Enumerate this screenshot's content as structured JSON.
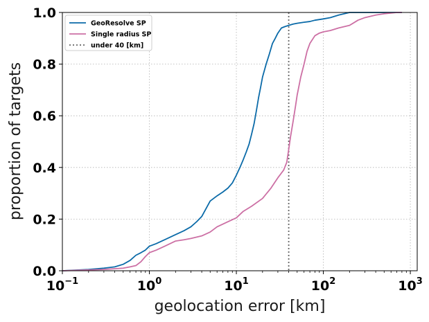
{
  "chart_data": {
    "type": "line",
    "title": "",
    "xlabel": "geolocation error [km]",
    "ylabel": "proportion of targets",
    "xscale": "log",
    "xlim": [
      0.1,
      1200
    ],
    "ylim": [
      0,
      1
    ],
    "x_ticks": [
      {
        "value": 0.1,
        "base": "10",
        "exp": "−1"
      },
      {
        "value": 1,
        "base": "10",
        "exp": "0"
      },
      {
        "value": 10,
        "base": "10",
        "exp": "1"
      },
      {
        "value": 100,
        "base": "10",
        "exp": "2"
      },
      {
        "value": 1000,
        "base": "10",
        "exp": "3"
      }
    ],
    "y_ticks": [
      {
        "value": 0,
        "label": "0.0"
      },
      {
        "value": 0.2,
        "label": "0.2"
      },
      {
        "value": 0.4,
        "label": "0.4"
      },
      {
        "value": 0.6,
        "label": "0.6"
      },
      {
        "value": 0.8,
        "label": "0.8"
      },
      {
        "value": 1,
        "label": "1.0"
      }
    ],
    "grid": true,
    "legend_position": "top-left",
    "series": [
      {
        "name": "GeoResolve SP",
        "color": "#0a6aa8",
        "style": "solid",
        "x": [
          0.1,
          0.2,
          0.3,
          0.4,
          0.5,
          0.6,
          0.7,
          0.8,
          0.9,
          1.0,
          1.2,
          1.5,
          2,
          2.5,
          3,
          3.5,
          4,
          5,
          6,
          7,
          8,
          9,
          10,
          11,
          12,
          13,
          14,
          15,
          16,
          17,
          18,
          19,
          20,
          22,
          24,
          26,
          28,
          30,
          33,
          36,
          40,
          45,
          50,
          60,
          70,
          80,
          100,
          120,
          150,
          200,
          300,
          500,
          800
        ],
        "y": [
          0.0,
          0.005,
          0.01,
          0.015,
          0.025,
          0.04,
          0.06,
          0.07,
          0.08,
          0.095,
          0.105,
          0.12,
          0.14,
          0.155,
          0.17,
          0.19,
          0.21,
          0.27,
          0.29,
          0.305,
          0.32,
          0.34,
          0.37,
          0.4,
          0.43,
          0.46,
          0.49,
          0.53,
          0.57,
          0.62,
          0.67,
          0.71,
          0.75,
          0.8,
          0.84,
          0.88,
          0.9,
          0.92,
          0.94,
          0.945,
          0.95,
          0.955,
          0.958,
          0.962,
          0.965,
          0.97,
          0.975,
          0.98,
          0.99,
          1.0,
          1.0,
          1.0,
          1.0
        ]
      },
      {
        "name": "Single radius SP",
        "color": "#cc6fa4",
        "style": "solid",
        "x": [
          0.1,
          0.3,
          0.5,
          0.6,
          0.7,
          0.8,
          0.9,
          1.0,
          1.2,
          1.5,
          2,
          2.5,
          3,
          4,
          5,
          6,
          8,
          10,
          12,
          15,
          20,
          25,
          30,
          35,
          38,
          40,
          42,
          45,
          48,
          50,
          55,
          60,
          65,
          70,
          80,
          90,
          100,
          120,
          150,
          200,
          250,
          300,
          400,
          500,
          700,
          800
        ],
        "y": [
          0.0,
          0.005,
          0.01,
          0.015,
          0.02,
          0.035,
          0.055,
          0.07,
          0.08,
          0.095,
          0.115,
          0.12,
          0.125,
          0.135,
          0.15,
          0.17,
          0.19,
          0.205,
          0.23,
          0.25,
          0.28,
          0.32,
          0.36,
          0.39,
          0.42,
          0.47,
          0.52,
          0.58,
          0.64,
          0.68,
          0.75,
          0.8,
          0.85,
          0.88,
          0.91,
          0.92,
          0.925,
          0.93,
          0.94,
          0.95,
          0.97,
          0.98,
          0.99,
          0.995,
          1.0,
          1.0
        ]
      }
    ],
    "reference_lines": [
      {
        "name": "under 40 [km]",
        "orientation": "vertical",
        "x": 40,
        "color": "#666666",
        "style": "dotted"
      }
    ]
  }
}
